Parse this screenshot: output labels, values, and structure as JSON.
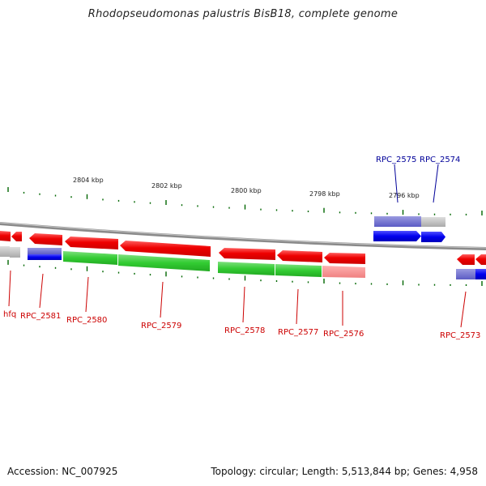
{
  "title": "Rhodopseudomonas palustris BisB18, complete genome",
  "accession": "Accession: NC_007925",
  "summary": "Topology: circular; Length: 5,513,844 bp; Genes: 4,958",
  "colors": {
    "strand_forward": "#ee0000",
    "strand_forward_shade": "#ff8080",
    "strand_reverse": "#0000ee",
    "cds_green": "#33cc33",
    "pseudo_purple": "#6666cc",
    "gray": "#bbbbbb",
    "tick": "#006600",
    "backbone": "#888888"
  },
  "scale_labels": [
    "2804 kbp",
    "2802 kbp",
    "2800 kbp",
    "2798 kbp",
    "2796 kbp"
  ],
  "gene_labels_top": [
    {
      "text": "RPC_2575",
      "color": "#000099"
    },
    {
      "text": "RPC_2574",
      "color": "#000099"
    }
  ],
  "gene_labels_bottom": [
    {
      "text": "hfq",
      "color": "#cc0000"
    },
    {
      "text": "RPC_2581",
      "color": "#cc0000"
    },
    {
      "text": "RPC_2580",
      "color": "#cc0000"
    },
    {
      "text": "RPC_2579",
      "color": "#cc0000"
    },
    {
      "text": "RPC_2578",
      "color": "#cc0000"
    },
    {
      "text": "RPC_2577",
      "color": "#cc0000"
    },
    {
      "text": "RPC_2576",
      "color": "#cc0000"
    },
    {
      "text": "RPC_2573",
      "color": "#cc0000"
    }
  ]
}
